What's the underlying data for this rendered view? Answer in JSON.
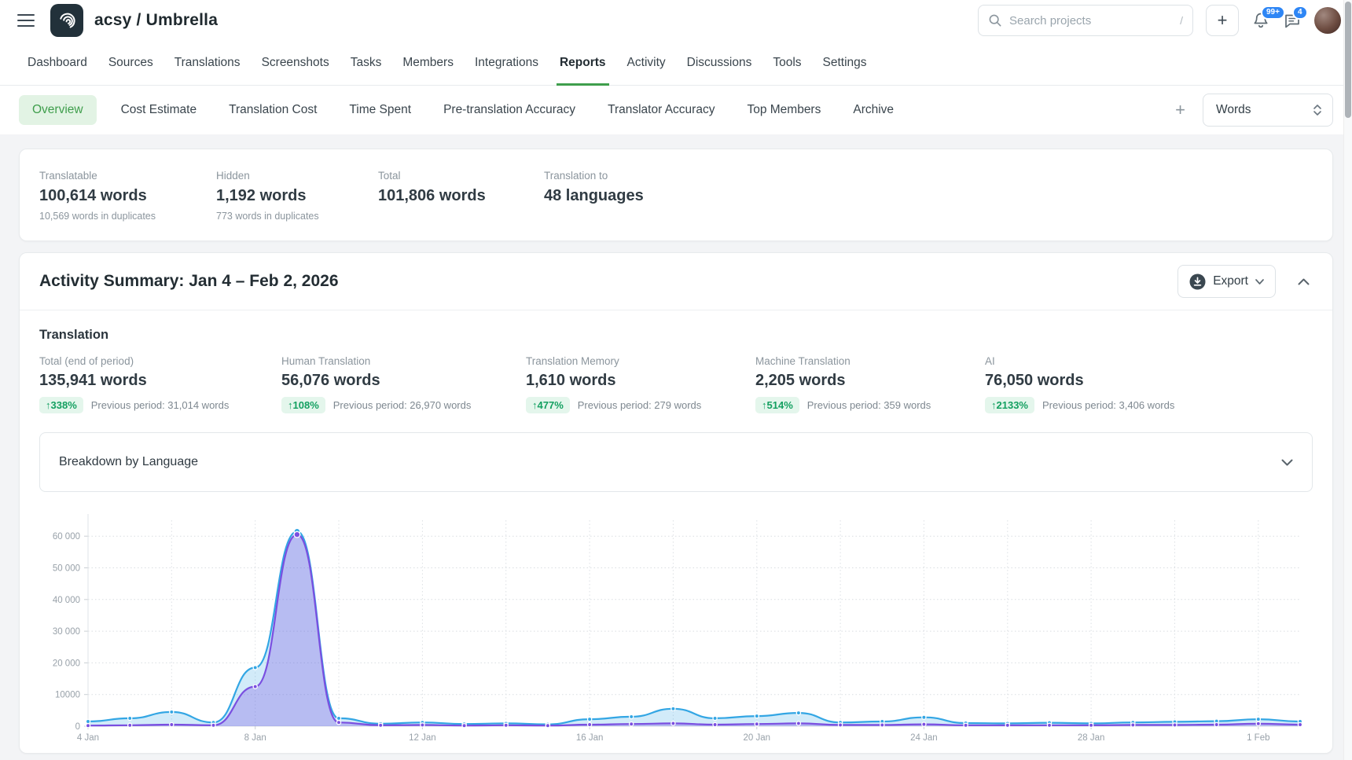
{
  "header": {
    "title": "acsy / Umbrella",
    "add_label": "+",
    "search": {
      "placeholder": "Search projects",
      "shortcut": "/"
    },
    "notifications_badge": "99+",
    "messages_badge": "4"
  },
  "nav": {
    "items": [
      "Dashboard",
      "Sources",
      "Translations",
      "Screenshots",
      "Tasks",
      "Members",
      "Integrations",
      "Reports",
      "Activity",
      "Discussions",
      "Tools",
      "Settings"
    ],
    "active": "Reports"
  },
  "subnav": {
    "tabs": [
      "Overview",
      "Cost Estimate",
      "Translation Cost",
      "Time Spent",
      "Pre-translation Accuracy",
      "Translator Accuracy",
      "Top Members",
      "Archive"
    ],
    "active": "Overview",
    "add_label": "+",
    "unit_selected": "Words"
  },
  "project_stats": {
    "items": [
      {
        "label": "Translatable",
        "value": "100,614 words",
        "note": "10,569 words in duplicates"
      },
      {
        "label": "Hidden",
        "value": "1,192 words",
        "note": "773 words in duplicates"
      },
      {
        "label": "Total",
        "value": "101,806 words",
        "note": ""
      },
      {
        "label": "Translation to",
        "value": "48 languages",
        "note": ""
      }
    ]
  },
  "activity": {
    "title": "Activity Summary: Jan 4 – Feb 2, 2026",
    "export_label": "Export",
    "section_title": "Translation",
    "metrics": [
      {
        "label": "Total (end of period)",
        "value": "135,941 words",
        "change": "↑338%",
        "previous": "Previous period: 31,014 words"
      },
      {
        "label": "Human Translation",
        "value": "56,076 words",
        "change": "↑108%",
        "previous": "Previous period: 26,970 words"
      },
      {
        "label": "Translation Memory",
        "value": "1,610 words",
        "change": "↑477%",
        "previous": "Previous period: 279 words"
      },
      {
        "label": "Machine Translation",
        "value": "2,205 words",
        "change": "↑514%",
        "previous": "Previous period: 359 words"
      },
      {
        "label": "AI",
        "value": "76,050 words",
        "change": "↑2133%",
        "previous": "Previous period: 3,406 words"
      }
    ],
    "breakdown_label": "Breakdown by Language"
  },
  "chart_data": {
    "type": "area",
    "title": "",
    "xlabel": "",
    "ylabel": "",
    "grid": "dotted horizontal per 10k, dotted vertical every 2 days",
    "legend_position": "none-visible",
    "ylim": [
      0,
      65000
    ],
    "ytick_step": 10000,
    "ytick_labels": [
      "0",
      "10000",
      "20 000",
      "30 000",
      "40 000",
      "50 000",
      "60 000"
    ],
    "xtick_labels": [
      "4 Jan",
      "8 Jan",
      "12 Jan",
      "16 Jan",
      "20 Jan",
      "24 Jan",
      "28 Jan",
      "1 Feb"
    ],
    "xtick_every": 4,
    "categories": [
      "Jan 4",
      "Jan 5",
      "Jan 6",
      "Jan 7",
      "Jan 8",
      "Jan 9",
      "Jan 10",
      "Jan 11",
      "Jan 12",
      "Jan 13",
      "Jan 14",
      "Jan 15",
      "Jan 16",
      "Jan 17",
      "Jan 18",
      "Jan 19",
      "Jan 20",
      "Jan 21",
      "Jan 22",
      "Jan 23",
      "Jan 24",
      "Jan 25",
      "Jan 26",
      "Jan 27",
      "Jan 28",
      "Jan 29",
      "Jan 30",
      "Jan 31",
      "Feb 1",
      "Feb 2"
    ],
    "series": [
      {
        "name": "blue",
        "color": "#33a6e4",
        "fill": "rgba(51,166,228,0.22)",
        "values": [
          1500,
          2500,
          4500,
          1200,
          18500,
          61500,
          2500,
          800,
          1200,
          700,
          900,
          600,
          2200,
          3000,
          5500,
          2500,
          3200,
          4200,
          1200,
          1500,
          2800,
          1000,
          900,
          1100,
          900,
          1200,
          1400,
          1600,
          2200,
          1500
        ]
      },
      {
        "name": "purple",
        "color": "#7a4fe0",
        "fill": "rgba(122,79,224,0.30)",
        "values": [
          200,
          300,
          500,
          300,
          12500,
          60500,
          1200,
          300,
          400,
          200,
          300,
          200,
          500,
          700,
          900,
          500,
          700,
          900,
          400,
          400,
          600,
          300,
          300,
          300,
          300,
          400,
          400,
          500,
          800,
          500
        ]
      }
    ]
  }
}
